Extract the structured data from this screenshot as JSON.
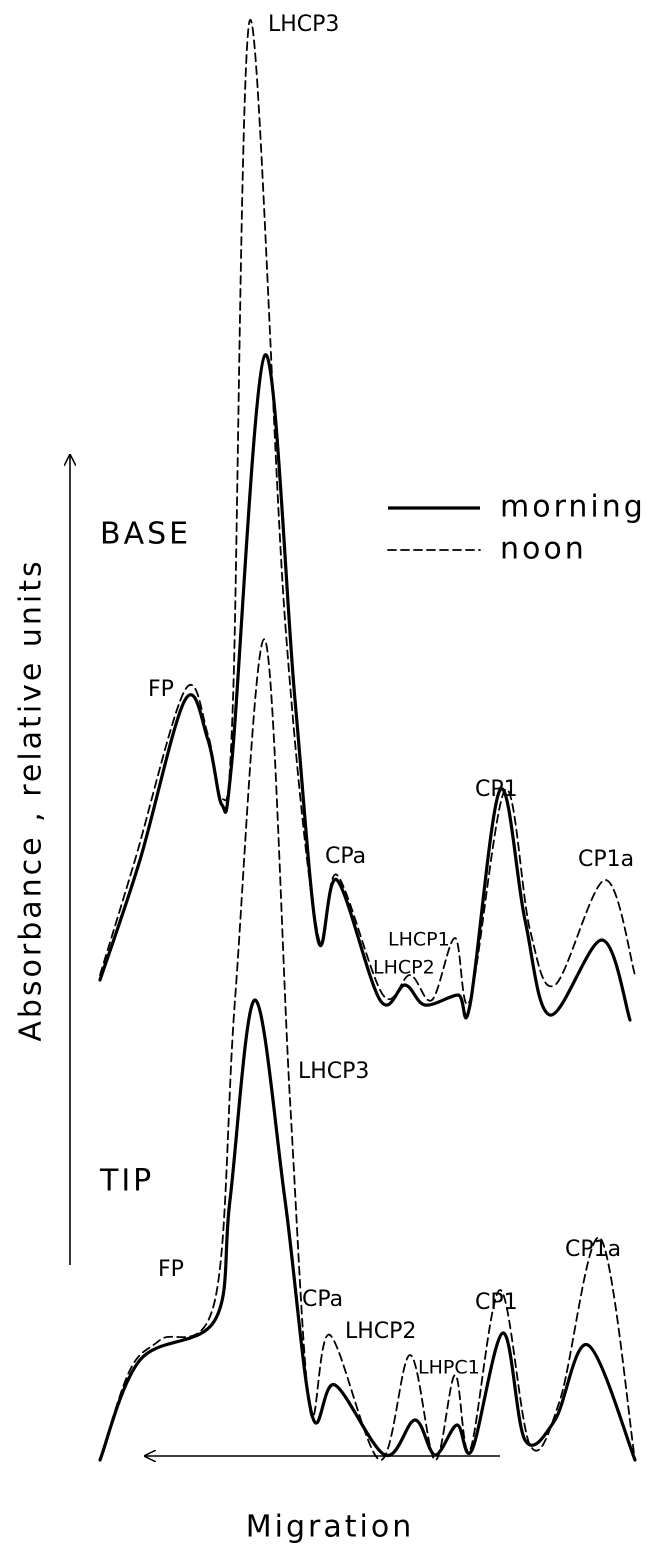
{
  "labels": {
    "top_lhcp3": "LHCP3",
    "base": "BASE",
    "base_fp": "FP",
    "base_cpa": "CPa",
    "base_cp1": "CP1",
    "base_cp1a": "CP1a",
    "base_lhcp1": "LHCP1",
    "base_lhcp2": "LHCP2",
    "tip_lhcp3": "LHCP3",
    "tip": "TIP",
    "tip_fp": "FP",
    "tip_cpa": "CPa",
    "tip_lhcp2": "LHCP2",
    "tip_cp1": "CP1",
    "tip_cp1a": "CP1a",
    "tip_lhpc1": "LHPC1"
  },
  "legend": {
    "morning": "morning",
    "noon": "noon"
  },
  "axes": {
    "y_label": "Absorbance , relative units",
    "x_label": "Migration"
  }
}
